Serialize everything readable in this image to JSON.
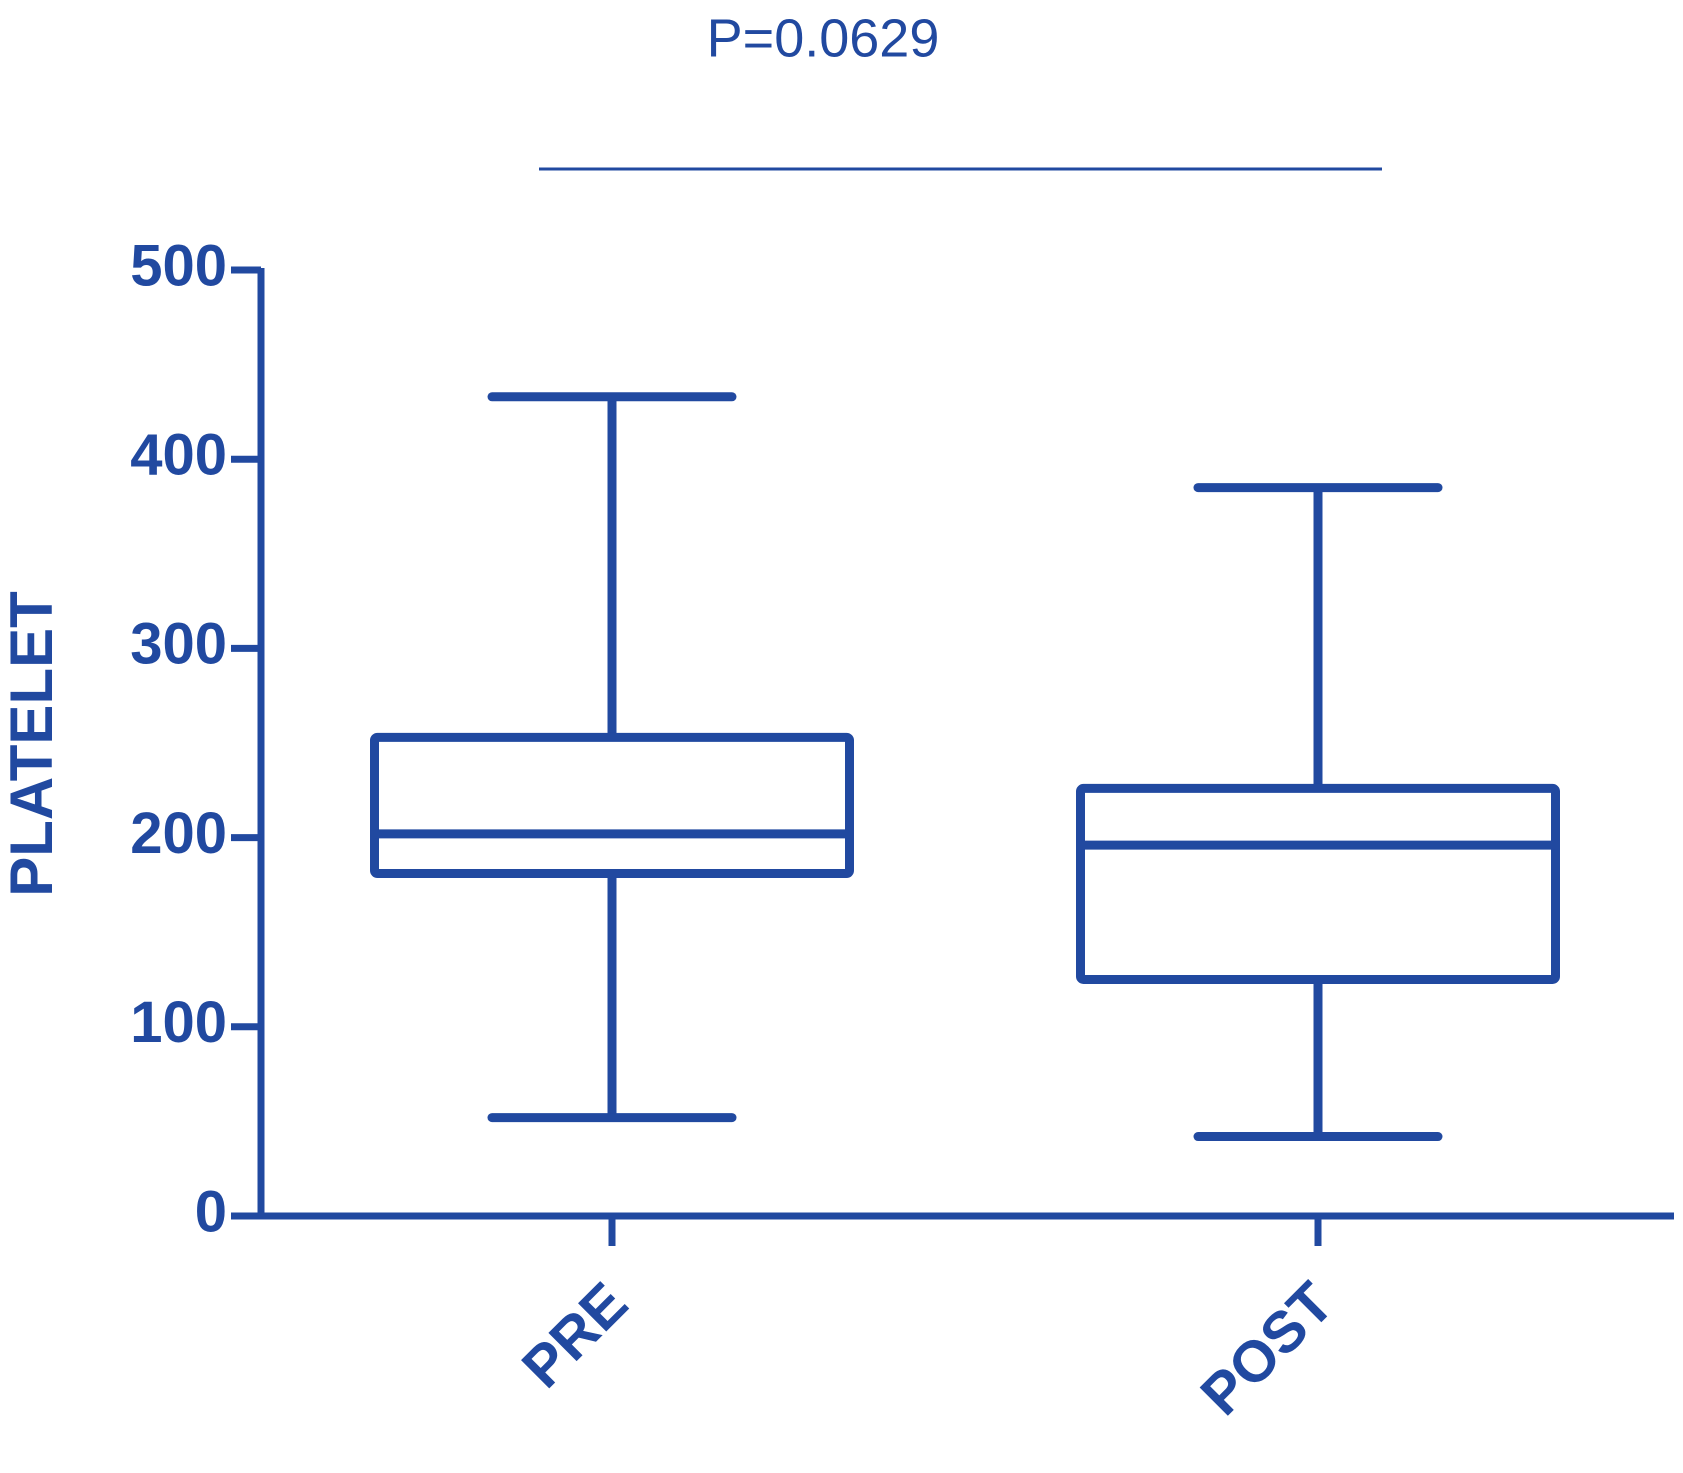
{
  "chart_data": {
    "type": "box",
    "annotation": "P=0.0629",
    "ylabel": "PLATELET",
    "categories": [
      "PRE",
      "POST"
    ],
    "values": [
      {
        "min": 52,
        "q1": 181,
        "median": 202,
        "q3": 253,
        "max": 433
      },
      {
        "min": 42,
        "q1": 125,
        "median": 196,
        "q3": 226,
        "max": 385
      }
    ],
    "color": "#2149a0",
    "ylim": [
      0,
      500
    ],
    "yticks": [
      0,
      100,
      200,
      300,
      400,
      500
    ],
    "grid": false
  }
}
